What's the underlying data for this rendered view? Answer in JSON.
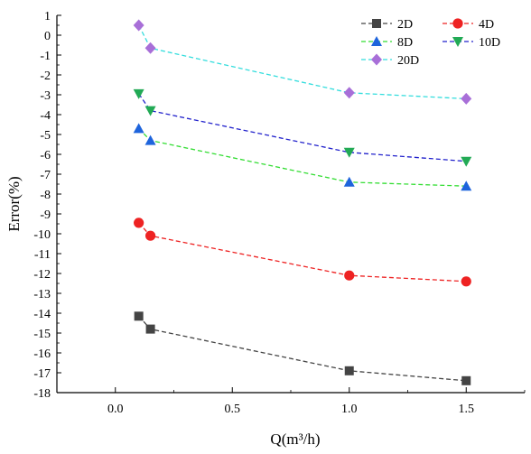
{
  "chart_data": {
    "type": "line",
    "xlabel": "Q(m³/h)",
    "ylabel": "Error(%)",
    "xlim": [
      -0.25,
      1.75
    ],
    "ylim": [
      -18,
      1
    ],
    "xticks": [
      0.0,
      0.5,
      1.0,
      1.5
    ],
    "xtick_labels": [
      "0.0",
      "0.5",
      "1.0",
      "1.5"
    ],
    "yticks": [
      1,
      0,
      -1,
      -2,
      -3,
      -4,
      -5,
      -6,
      -7,
      -8,
      -9,
      -10,
      -11,
      -12,
      -13,
      -14,
      -15,
      -16,
      -17,
      -18
    ],
    "grid": false,
    "legend_position": "top-right",
    "series": [
      {
        "name": "2D",
        "color": "#444444",
        "marker": "square",
        "x": [
          0.1,
          0.15,
          1.0,
          1.5
        ],
        "y": [
          -14.15,
          -14.8,
          -16.9,
          -17.4
        ]
      },
      {
        "name": "4D",
        "color": "#ee2222",
        "marker": "circle",
        "x": [
          0.1,
          0.15,
          1.0,
          1.5
        ],
        "y": [
          -9.45,
          -10.1,
          -12.1,
          -12.4
        ]
      },
      {
        "name": "8D",
        "color": "#1e64dc",
        "line_color": "#33dd33",
        "marker": "triangle-up",
        "x": [
          0.1,
          0.15,
          1.0,
          1.5
        ],
        "y": [
          -4.7,
          -5.3,
          -7.4,
          -7.6
        ]
      },
      {
        "name": "10D",
        "color": "#22aa55",
        "line_color": "#2222cc",
        "marker": "triangle-down",
        "x": [
          0.1,
          0.15,
          1.0,
          1.5
        ],
        "y": [
          -2.95,
          -3.8,
          -5.9,
          -6.35
        ]
      },
      {
        "name": "20D",
        "color": "#a86fd8",
        "line_color": "#33dddd",
        "marker": "diamond",
        "x": [
          0.1,
          0.15,
          1.0,
          1.5
        ],
        "y": [
          0.5,
          -0.65,
          -2.9,
          -3.2
        ]
      }
    ]
  }
}
